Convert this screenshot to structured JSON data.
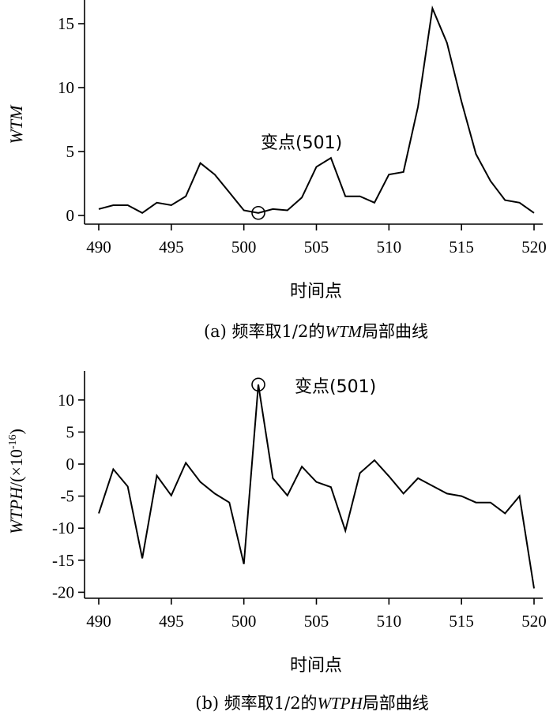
{
  "chart_data": [
    {
      "type": "line",
      "ylabel": "WTM",
      "xlabel": "时间点",
      "caption": {
        "prefix": "(a) 频率取1/2的",
        "italic": "WTM",
        "suffix": "局部曲线"
      },
      "xlim": [
        490,
        520
      ],
      "ylim": [
        -0.3,
        16.5
      ],
      "xticks": [
        "490",
        "495",
        "500",
        "505",
        "510",
        "515",
        "520"
      ],
      "yticks": [
        "0",
        "5",
        "10",
        "15"
      ],
      "x": [
        490,
        491,
        492,
        493,
        494,
        495,
        496,
        497,
        498,
        499,
        500,
        501,
        502,
        503,
        504,
        505,
        506,
        507,
        508,
        509,
        510,
        511,
        512,
        513,
        514,
        515,
        516,
        517,
        518,
        519,
        520
      ],
      "series": [
        {
          "values": [
            0.5,
            0.8,
            0.8,
            0.2,
            1.0,
            0.8,
            1.5,
            4.1,
            3.2,
            1.8,
            0.4,
            0.2,
            0.5,
            0.4,
            1.4,
            3.8,
            4.5,
            1.5,
            1.5,
            1.0,
            3.2,
            3.4,
            8.5,
            16.2,
            13.5,
            8.9,
            4.8,
            2.7,
            1.2,
            1.0,
            0.2
          ]
        }
      ],
      "annotation": {
        "text": "变点(501)",
        "x": 501,
        "y": 0.2
      }
    },
    {
      "type": "line",
      "ylabel_main": "WTPH",
      "ylabel_unit": "/(×10",
      "ylabel_exp": "-16",
      "ylabel_close": ")",
      "xlabel": "时间点",
      "caption": {
        "prefix": "(b) 频率取1/2的",
        "italic": "WTPH",
        "suffix": "局部曲线"
      },
      "xlim": [
        490,
        520
      ],
      "ylim": [
        -20.5,
        13.5
      ],
      "xticks": [
        "490",
        "495",
        "500",
        "505",
        "510",
        "515",
        "520"
      ],
      "yticks": [
        "10",
        "5",
        "0",
        "-5",
        "-10",
        "-15",
        "-20"
      ],
      "x": [
        490,
        491,
        492,
        493,
        494,
        495,
        496,
        497,
        498,
        499,
        500,
        501,
        502,
        503,
        504,
        505,
        506,
        507,
        508,
        509,
        510,
        511,
        512,
        513,
        514,
        515,
        516,
        517,
        518,
        519,
        520
      ],
      "series": [
        {
          "values": [
            -7.7,
            -0.8,
            -3.5,
            -14.7,
            -1.8,
            -4.9,
            0.2,
            -2.8,
            -4.6,
            -6.0,
            -15.6,
            12.4,
            -2.2,
            -4.9,
            -0.4,
            -2.8,
            -3.6,
            -10.4,
            -1.4,
            0.6,
            -1.9,
            -4.6,
            -2.2,
            -3.4,
            -4.6,
            -5.0,
            -6.0,
            -6.0,
            -7.7,
            -5.0,
            -19.4
          ]
        }
      ],
      "annotation": {
        "text": "变点(501)",
        "x": 501,
        "y": 12.4
      }
    }
  ]
}
